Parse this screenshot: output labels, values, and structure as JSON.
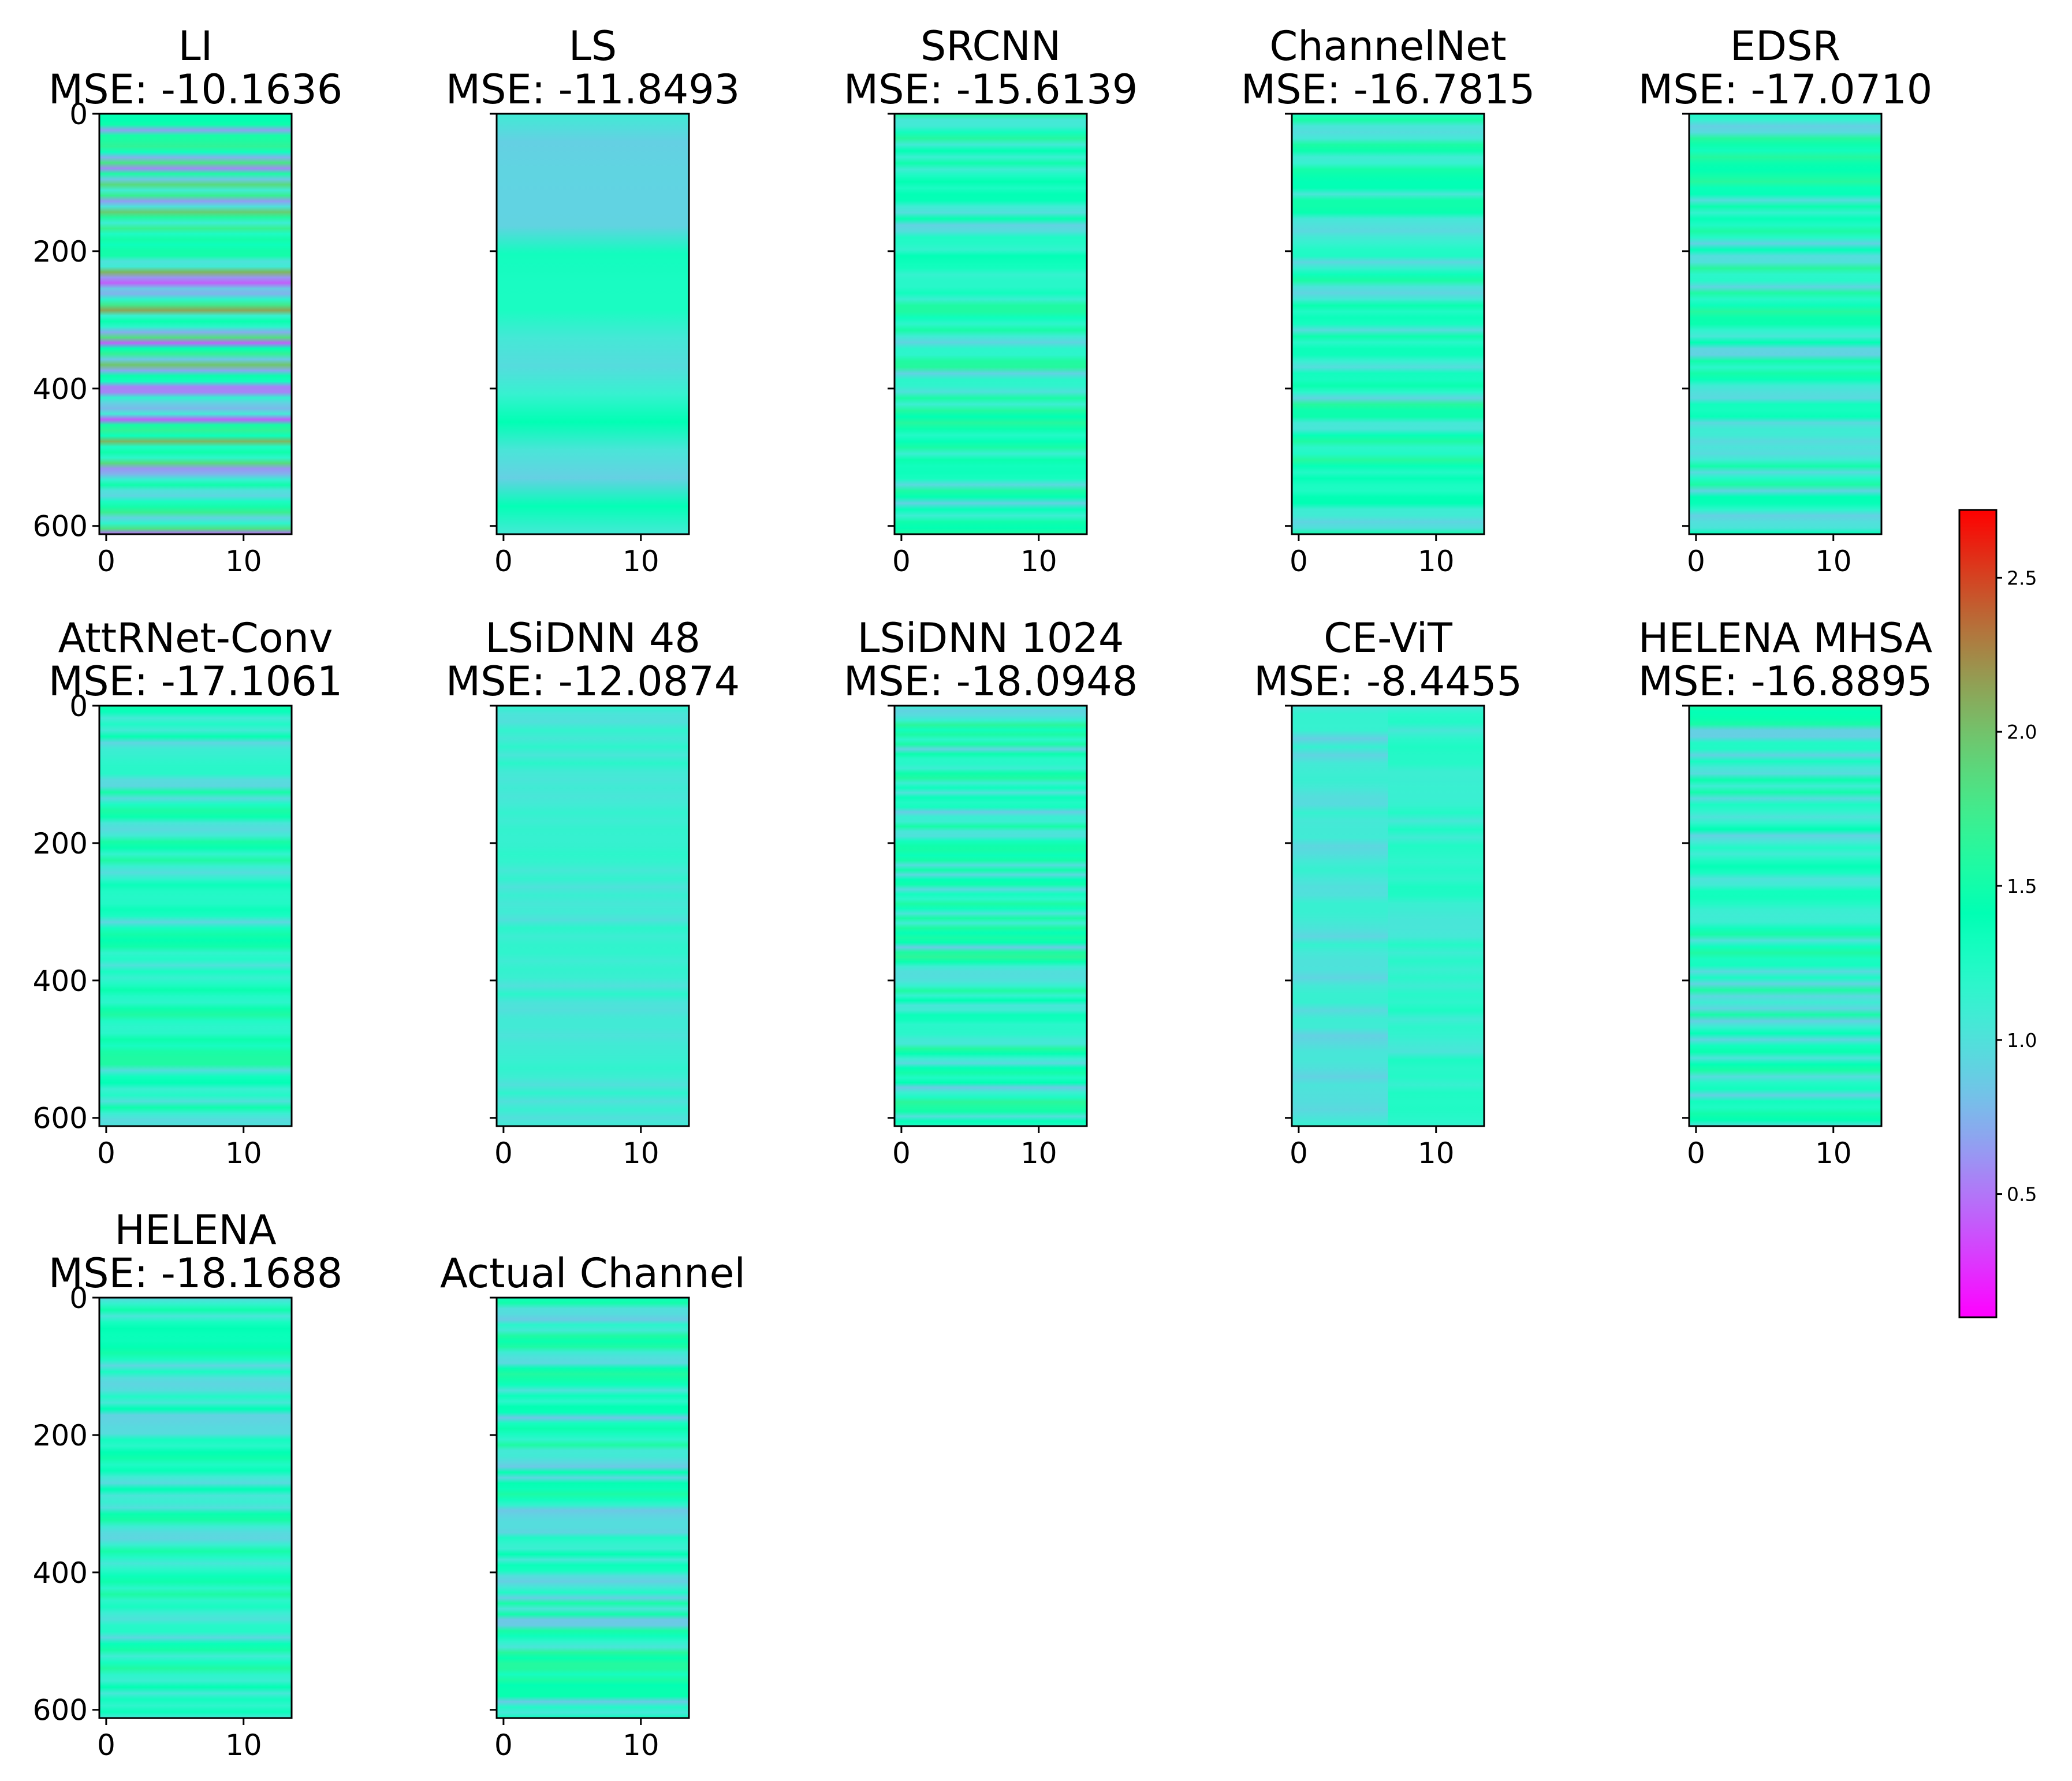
{
  "chart_data": {
    "type": "heatmap",
    "colormap": "rainbow",
    "layout": "3 rows x 5 columns, shared y axis",
    "xlim": [
      -0.5,
      13.5
    ],
    "ylim": [
      612,
      0
    ],
    "x_ticks": [
      "0",
      "10"
    ],
    "y_ticks": [
      "0",
      "200",
      "400",
      "600"
    ],
    "panels": [
      {
        "model": "LI",
        "mse_label": "MSE: -10.1636",
        "mse": -10.1636
      },
      {
        "model": "LS",
        "mse_label": "MSE: -11.8493",
        "mse": -11.8493
      },
      {
        "model": "SRCNN",
        "mse_label": "MSE: -15.6139",
        "mse": -15.6139
      },
      {
        "model": "ChannelNet",
        "mse_label": "MSE: -16.7815",
        "mse": -16.7815
      },
      {
        "model": "EDSR",
        "mse_label": "MSE: -17.0710",
        "mse": -17.071
      },
      {
        "model": "AttRNet-Conv",
        "mse_label": "MSE: -17.1061",
        "mse": -17.1061
      },
      {
        "model": "LSiDNN 48",
        "mse_label": "MSE: -12.0874",
        "mse": -12.0874
      },
      {
        "model": "LSiDNN 1024",
        "mse_label": "MSE: -18.0948",
        "mse": -18.0948
      },
      {
        "model": "CE-ViT",
        "mse_label": "MSE: -8.4455",
        "mse": -8.4455
      },
      {
        "model": "HELENA MHSA",
        "mse_label": "MSE: -16.8895",
        "mse": -16.8895
      },
      {
        "model": "HELENA",
        "mse_label": "MSE: -18.1688",
        "mse": -18.1688
      },
      {
        "model": "Actual Channel",
        "mse_label": "",
        "mse": null
      }
    ],
    "colorbar": {
      "range": [
        0.1,
        2.72
      ],
      "ticks": [
        "0.5",
        "1.0",
        "1.5",
        "2.0",
        "2.5"
      ]
    }
  }
}
